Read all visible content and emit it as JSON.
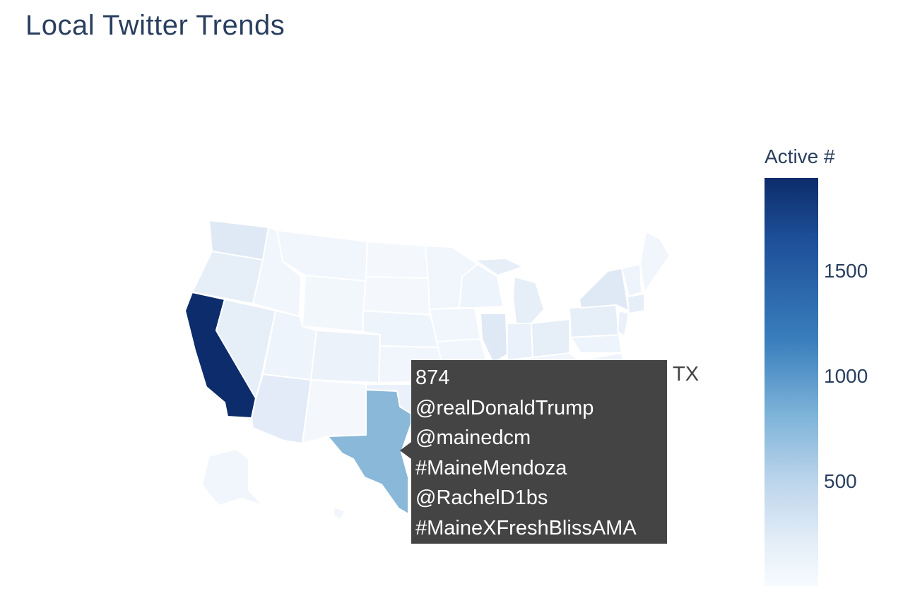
{
  "title": "Local Twitter Trends",
  "chart_data": {
    "type": "choropleth",
    "scope": "usa",
    "colorscale": "Blues",
    "colorbar": {
      "title": "Active #",
      "ticks": [
        "1500",
        "1000",
        "500"
      ],
      "tick_values": [
        1500,
        1000,
        500
      ],
      "range": [
        0,
        1950
      ]
    },
    "highlighted": [
      {
        "state": "CA",
        "value": 1950
      },
      {
        "state": "TX",
        "value": 874
      }
    ],
    "colors": {
      "max": "#0d2c6b",
      "mid": "#89b8d9",
      "low": "#f4f8fd",
      "hover_bg": "#444444"
    }
  },
  "tooltip": {
    "state": "TX",
    "lines": [
      "874",
      "@realDonaldTrump",
      "@mainedcm",
      "#MaineMendoza",
      "@RachelD1bs",
      "#MaineXFreshBlissAMA"
    ]
  }
}
